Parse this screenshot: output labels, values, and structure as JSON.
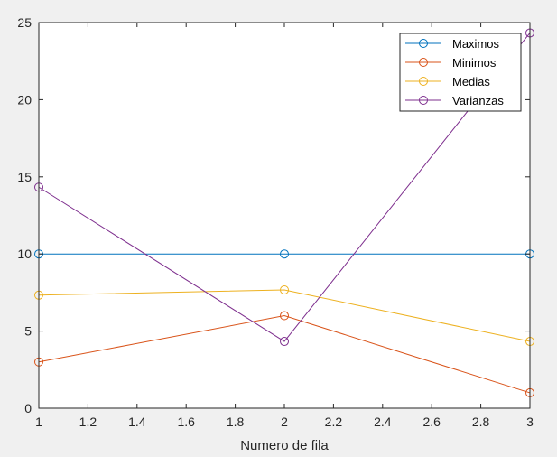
{
  "chart_data": {
    "type": "line",
    "x": [
      1,
      2,
      3
    ],
    "xlim": [
      1,
      3
    ],
    "ylim": [
      0,
      25
    ],
    "xticks": [
      "1",
      "1.2",
      "1.4",
      "1.6",
      "1.8",
      "2",
      "2.2",
      "2.4",
      "2.6",
      "2.8",
      "3"
    ],
    "yticks": [
      "0",
      "5",
      "10",
      "15",
      "20",
      "25"
    ],
    "xlabel": "Numero de fila",
    "ylabel": "",
    "title": "",
    "grid": false,
    "legend_position": "top-right",
    "marker": "circle-open",
    "series": [
      {
        "name": "Maximos",
        "color": "#0072BD",
        "values": [
          10,
          10,
          10
        ]
      },
      {
        "name": "Minimos",
        "color": "#D95319",
        "values": [
          3,
          6,
          1
        ]
      },
      {
        "name": "Medias",
        "color": "#EDB120",
        "values": [
          7.33,
          7.67,
          4.33
        ]
      },
      {
        "name": "Varianzas",
        "color": "#7E2F8E",
        "values": [
          14.33,
          4.33,
          24.33
        ]
      }
    ]
  }
}
